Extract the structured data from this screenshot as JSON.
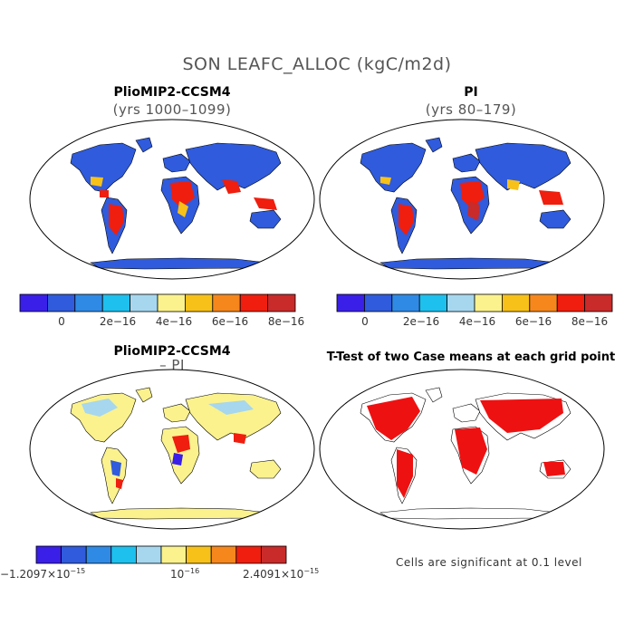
{
  "main_title": "SON LEAFC_ALLOC (kgC/m2d)",
  "panels": [
    {
      "id": "top-left",
      "title": "PlioMIP2-CCSM4",
      "subtitle": "(yrs 1000–1099)"
    },
    {
      "id": "top-right",
      "title": "PI",
      "subtitle": "(yrs 80–179)"
    },
    {
      "id": "bottom-left",
      "title": "PlioMIP2-CCSM4",
      "subtitle": "– PI"
    },
    {
      "id": "bottom-right",
      "title": "T-Test of two Case means at each grid point",
      "subtitle": ""
    }
  ],
  "colorbars": {
    "top": {
      "colors": [
        "#3a1fe8",
        "#2f5bdc",
        "#2f8ae6",
        "#1ec0ee",
        "#a6d7ef",
        "#fbf28e",
        "#f7c11a",
        "#f6871d",
        "#ef1e0e",
        "#c92a2a"
      ],
      "ticks": [
        "0",
        "2e−16",
        "4e−16",
        "6e−16",
        "8e−16"
      ]
    },
    "diff": {
      "colors": [
        "#3a1fe8",
        "#2f5bdc",
        "#2f8ae6",
        "#1ec0ee",
        "#a6d7ef",
        "#fbf28e",
        "#f7c11a",
        "#f6871d",
        "#ef1e0e",
        "#c92a2a"
      ],
      "tick_min": "−1.2097×10",
      "tick_min_exp": "−15",
      "tick_mid": "10",
      "tick_mid_exp": "−16",
      "tick_max": "2.4091×10",
      "tick_max_exp": "−15"
    }
  },
  "footnote": "Cells are significant at 0.1 level",
  "map_colors": {
    "low": "#2f5bdc",
    "mid": "#f7c11a",
    "high": "#ef1e0e",
    "diff_base": "#fbf28e",
    "diff_light": "#a6d7ef",
    "significant": "#ee1111"
  }
}
